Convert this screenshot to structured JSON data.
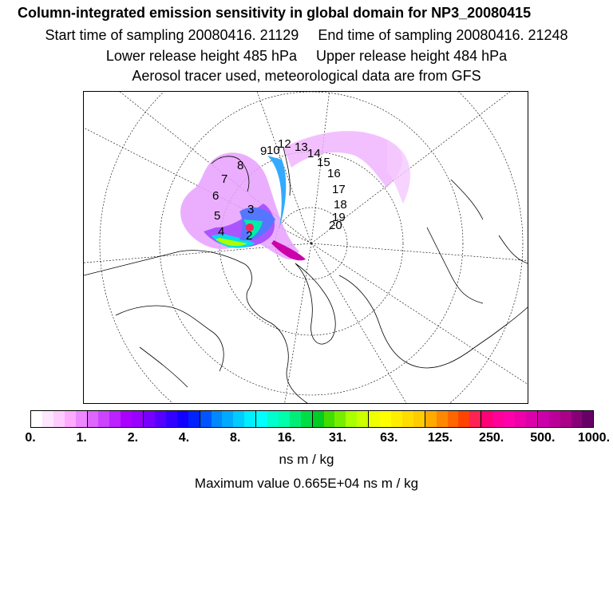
{
  "header": {
    "title": "Column-integrated emission sensitivity in global domain for NP3_20080415",
    "start_time": "Start time of sampling 20080416. 21129",
    "end_time": "End time of sampling 20080416. 21248",
    "lower_release": "Lower release height  485 hPa",
    "upper_release": "Upper release height  484 hPa",
    "tracer_info": "Aerosol tracer used, meteorological data are from GFS"
  },
  "map": {
    "projection": "polar stereographic (north pole)",
    "trajectory_labels": [
      "2",
      "3",
      "4",
      "5",
      "6",
      "7",
      "8",
      "9",
      "10",
      "12",
      "13",
      "14",
      "15",
      "16",
      "17",
      "18",
      "19",
      "20"
    ]
  },
  "colorbar": {
    "tick_labels": [
      "0.",
      "1.",
      "2.",
      "4.",
      "8.",
      "16.",
      "31.",
      "63.",
      "125.",
      "250.",
      "500.",
      "1000."
    ],
    "colors": [
      "#ffffff",
      "#ffe6ff",
      "#ffccff",
      "#ffaaff",
      "#ee88ff",
      "#dd66ff",
      "#cc44ff",
      "#bb22ff",
      "#aa00ff",
      "#9900ff",
      "#7700ff",
      "#5500ff",
      "#3300ff",
      "#1100ff",
      "#0022ff",
      "#0055ff",
      "#0088ff",
      "#00aaff",
      "#00ccff",
      "#00eeff",
      "#00ffff",
      "#00ffcc",
      "#00ffaa",
      "#00ee77",
      "#00dd44",
      "#00cc22",
      "#44dd00",
      "#77ee00",
      "#aaff00",
      "#ccff00",
      "#eeff00",
      "#ffff00",
      "#ffee00",
      "#ffdd00",
      "#ffcc00",
      "#ffaa00",
      "#ff8800",
      "#ff6600",
      "#ff4400",
      "#ff2255",
      "#ff0077",
      "#ff0099",
      "#ff00aa",
      "#ee00aa",
      "#dd00aa",
      "#cc00aa",
      "#bb0099",
      "#aa0088",
      "#880077",
      "#660066"
    ],
    "unit": "ns m / kg",
    "max_value": "Maximum value  0.665E+04 ns m / kg"
  }
}
